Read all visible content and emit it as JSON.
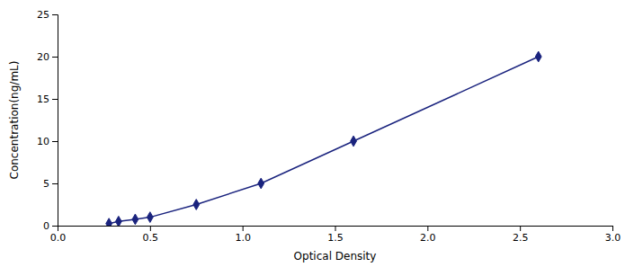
{
  "chart_data": {
    "type": "line",
    "xlabel": "Optical Density",
    "ylabel": "Concentration(ng/mL)",
    "x": [
      0.278,
      0.33,
      0.42,
      0.5,
      0.75,
      1.1,
      1.6,
      2.6
    ],
    "values": [
      0.25,
      0.5,
      0.75,
      1.0,
      2.5,
      5.0,
      10.0,
      20.0
    ],
    "color": "#1a237e",
    "marker": "diamond",
    "xlim": [
      0,
      3.0
    ],
    "ylim": [
      0,
      25
    ],
    "xticks": [
      {
        "value": 0,
        "label": "0.0"
      },
      0.5,
      {
        "value": 1.0,
        "label": "1.0"
      },
      1.5,
      {
        "value": 2.0,
        "label": "2.0"
      },
      2.5,
      {
        "value": 3.0,
        "label": "3.0"
      }
    ],
    "yticks": [
      0,
      5,
      10,
      15,
      20,
      25
    ],
    "grid": false
  }
}
